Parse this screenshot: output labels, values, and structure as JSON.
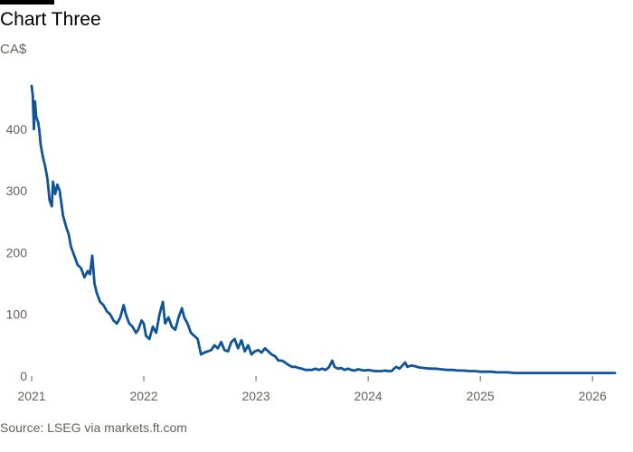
{
  "header": {
    "title": "Chart Three",
    "subtitle": "CA$"
  },
  "footer": {
    "source": "Source: LSEG via markets.ft.com"
  },
  "colors": {
    "line": "#0f5499",
    "baseline": "#66605c",
    "text": "#66605c"
  },
  "chart_data": {
    "type": "line",
    "title": "Chart Three",
    "ylabel": "CA$",
    "xlim": [
      2021.0,
      2026.2
    ],
    "ylim": [
      0,
      470
    ],
    "y_ticks": [
      0,
      100,
      200,
      300,
      400
    ],
    "x_ticks": [
      2021,
      2022,
      2023,
      2024,
      2025,
      2026
    ],
    "grid": false,
    "series": [
      {
        "values": [
          [
            2021.0,
            470
          ],
          [
            2021.01,
            455
          ],
          [
            2021.02,
            400
          ],
          [
            2021.03,
            445
          ],
          [
            2021.04,
            420
          ],
          [
            2021.06,
            410
          ],
          [
            2021.07,
            395
          ],
          [
            2021.08,
            375
          ],
          [
            2021.1,
            355
          ],
          [
            2021.12,
            340
          ],
          [
            2021.14,
            320
          ],
          [
            2021.16,
            285
          ],
          [
            2021.18,
            275
          ],
          [
            2021.19,
            315
          ],
          [
            2021.21,
            295
          ],
          [
            2021.23,
            310
          ],
          [
            2021.25,
            300
          ],
          [
            2021.28,
            260
          ],
          [
            2021.31,
            240
          ],
          [
            2021.33,
            230
          ],
          [
            2021.35,
            210
          ],
          [
            2021.38,
            195
          ],
          [
            2021.41,
            180
          ],
          [
            2021.44,
            175
          ],
          [
            2021.47,
            160
          ],
          [
            2021.5,
            170
          ],
          [
            2021.52,
            165
          ],
          [
            2021.54,
            195
          ],
          [
            2021.56,
            150
          ],
          [
            2021.58,
            135
          ],
          [
            2021.61,
            120
          ],
          [
            2021.64,
            115
          ],
          [
            2021.67,
            105
          ],
          [
            2021.7,
            100
          ],
          [
            2021.73,
            90
          ],
          [
            2021.76,
            85
          ],
          [
            2021.79,
            95
          ],
          [
            2021.82,
            115
          ],
          [
            2021.84,
            100
          ],
          [
            2021.87,
            85
          ],
          [
            2021.9,
            80
          ],
          [
            2021.93,
            70
          ],
          [
            2021.95,
            75
          ],
          [
            2021.98,
            90
          ],
          [
            2022.0,
            85
          ],
          [
            2022.02,
            65
          ],
          [
            2022.05,
            60
          ],
          [
            2022.08,
            80
          ],
          [
            2022.11,
            70
          ],
          [
            2022.14,
            100
          ],
          [
            2022.17,
            120
          ],
          [
            2022.19,
            85
          ],
          [
            2022.22,
            95
          ],
          [
            2022.25,
            80
          ],
          [
            2022.28,
            75
          ],
          [
            2022.31,
            95
          ],
          [
            2022.34,
            110
          ],
          [
            2022.36,
            95
          ],
          [
            2022.39,
            85
          ],
          [
            2022.42,
            70
          ],
          [
            2022.45,
            65
          ],
          [
            2022.48,
            60
          ],
          [
            2022.51,
            35
          ],
          [
            2022.54,
            38
          ],
          [
            2022.57,
            40
          ],
          [
            2022.6,
            42
          ],
          [
            2022.63,
            50
          ],
          [
            2022.66,
            45
          ],
          [
            2022.69,
            55
          ],
          [
            2022.72,
            42
          ],
          [
            2022.75,
            40
          ],
          [
            2022.78,
            55
          ],
          [
            2022.81,
            60
          ],
          [
            2022.84,
            45
          ],
          [
            2022.87,
            58
          ],
          [
            2022.9,
            40
          ],
          [
            2022.93,
            50
          ],
          [
            2022.96,
            35
          ],
          [
            2022.99,
            40
          ],
          [
            2023.02,
            42
          ],
          [
            2023.05,
            38
          ],
          [
            2023.08,
            45
          ],
          [
            2023.11,
            40
          ],
          [
            2023.14,
            35
          ],
          [
            2023.17,
            32
          ],
          [
            2023.2,
            25
          ],
          [
            2023.23,
            25
          ],
          [
            2023.26,
            22
          ],
          [
            2023.29,
            18
          ],
          [
            2023.32,
            15
          ],
          [
            2023.35,
            15
          ],
          [
            2023.38,
            13
          ],
          [
            2023.41,
            12
          ],
          [
            2023.44,
            10
          ],
          [
            2023.47,
            10
          ],
          [
            2023.5,
            10
          ],
          [
            2023.53,
            12
          ],
          [
            2023.56,
            10
          ],
          [
            2023.59,
            12
          ],
          [
            2023.62,
            10
          ],
          [
            2023.65,
            14
          ],
          [
            2023.68,
            25
          ],
          [
            2023.7,
            15
          ],
          [
            2023.73,
            12
          ],
          [
            2023.76,
            13
          ],
          [
            2023.79,
            10
          ],
          [
            2023.82,
            12
          ],
          [
            2023.85,
            10
          ],
          [
            2023.88,
            9
          ],
          [
            2023.91,
            11
          ],
          [
            2023.94,
            10
          ],
          [
            2023.97,
            9
          ],
          [
            2024.0,
            10
          ],
          [
            2024.03,
            9
          ],
          [
            2024.06,
            8
          ],
          [
            2024.09,
            8
          ],
          [
            2024.12,
            8
          ],
          [
            2024.15,
            9
          ],
          [
            2024.18,
            8
          ],
          [
            2024.21,
            8
          ],
          [
            2024.23,
            12
          ],
          [
            2024.25,
            15
          ],
          [
            2024.28,
            12
          ],
          [
            2024.31,
            18
          ],
          [
            2024.33,
            22
          ],
          [
            2024.35,
            15
          ],
          [
            2024.38,
            17
          ],
          [
            2024.42,
            16
          ],
          [
            2024.45,
            14
          ],
          [
            2024.5,
            13
          ],
          [
            2024.55,
            12
          ],
          [
            2024.6,
            12
          ],
          [
            2024.65,
            11
          ],
          [
            2024.7,
            10
          ],
          [
            2024.75,
            10
          ],
          [
            2024.8,
            9
          ],
          [
            2024.85,
            9
          ],
          [
            2024.9,
            8
          ],
          [
            2024.95,
            8
          ],
          [
            2025.0,
            7
          ],
          [
            2025.05,
            7
          ],
          [
            2025.1,
            7
          ],
          [
            2025.15,
            6
          ],
          [
            2025.2,
            6
          ],
          [
            2025.25,
            6
          ],
          [
            2025.3,
            5
          ],
          [
            2025.4,
            5
          ],
          [
            2025.5,
            5
          ],
          [
            2025.6,
            5
          ],
          [
            2025.7,
            5
          ],
          [
            2025.8,
            5
          ],
          [
            2025.9,
            5
          ],
          [
            2026.0,
            5
          ],
          [
            2026.1,
            5
          ],
          [
            2026.2,
            5
          ]
        ]
      }
    ]
  }
}
